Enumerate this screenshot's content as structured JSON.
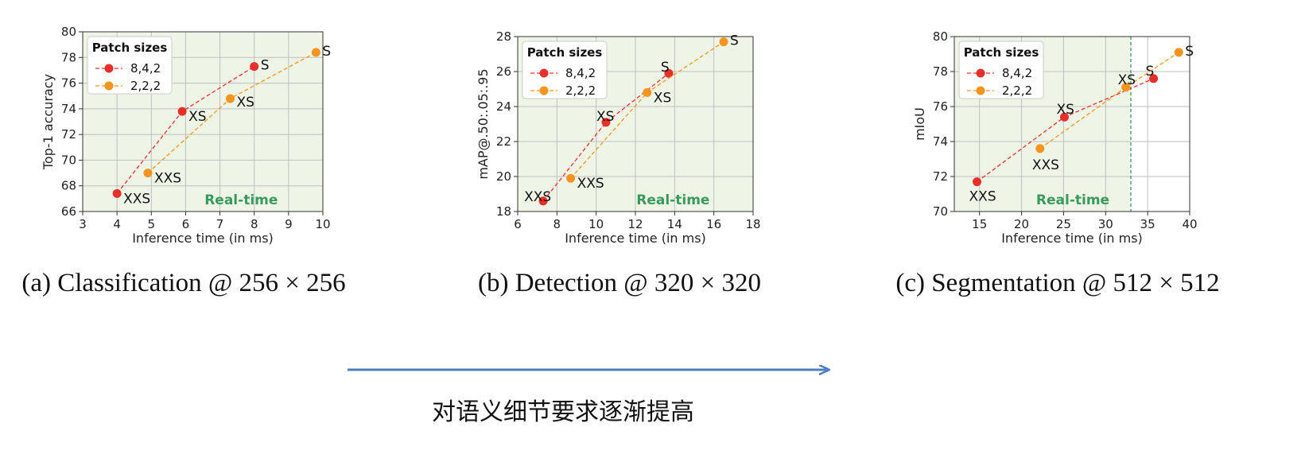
{
  "chart_data": [
    {
      "type": "line",
      "xlabel": "Inference time (in ms)",
      "ylabel": "Top-1 accuracy",
      "xlim": [
        3,
        10
      ],
      "ylim": [
        66,
        80
      ],
      "xticks": [
        "3",
        "4",
        "5",
        "6",
        "7",
        "8",
        "9",
        "10"
      ],
      "yticks": [
        "66",
        "68",
        "70",
        "72",
        "74",
        "76",
        "78",
        "80"
      ],
      "legend_title": "Patch sizes",
      "legend_position": "top-left",
      "grid": true,
      "annotation": "Real-time",
      "caption": "(a) Classification @ 256 × 256",
      "series": [
        {
          "name": "8,4,2",
          "color": "#e8302a",
          "points": [
            {
              "x": 4.0,
              "y": 67.4,
              "label": "XXS"
            },
            {
              "x": 5.9,
              "y": 73.8,
              "label": "XS"
            },
            {
              "x": 8.0,
              "y": 77.3,
              "label": "S"
            }
          ]
        },
        {
          "name": "2,2,2",
          "color": "#f7941d",
          "points": [
            {
              "x": 4.9,
              "y": 69.0,
              "label": "XXS"
            },
            {
              "x": 7.3,
              "y": 74.8,
              "label": "XS"
            },
            {
              "x": 9.8,
              "y": 78.4,
              "label": "S"
            }
          ]
        }
      ]
    },
    {
      "type": "line",
      "xlabel": "Inference time (in ms)",
      "ylabel": "mAP@.50:.05:.95",
      "xlim": [
        6,
        18
      ],
      "ylim": [
        18,
        28
      ],
      "xticks": [
        "6",
        "8",
        "10",
        "12",
        "14",
        "16",
        "18"
      ],
      "yticks": [
        "18",
        "20",
        "22",
        "24",
        "26",
        "28"
      ],
      "legend_title": "Patch sizes",
      "legend_position": "top-left",
      "grid": true,
      "annotation": "Real-time",
      "caption": "(b) Detection @ 320 × 320",
      "series": [
        {
          "name": "8,4,2",
          "color": "#e8302a",
          "points": [
            {
              "x": 7.3,
              "y": 18.6,
              "label": "XXS"
            },
            {
              "x": 10.5,
              "y": 23.1,
              "label": "XS"
            },
            {
              "x": 13.7,
              "y": 25.9,
              "label": "S"
            }
          ]
        },
        {
          "name": "2,2,2",
          "color": "#f7941d",
          "points": [
            {
              "x": 8.7,
              "y": 19.9,
              "label": "XXS"
            },
            {
              "x": 12.6,
              "y": 24.8,
              "label": "XS"
            },
            {
              "x": 16.5,
              "y": 27.7,
              "label": "S"
            }
          ]
        }
      ]
    },
    {
      "type": "line",
      "xlabel": "Inference time (in ms)",
      "ylabel": "mIoU",
      "xlim": [
        12,
        40
      ],
      "ylim": [
        70,
        80
      ],
      "xticks": [
        "15",
        "20",
        "25",
        "30",
        "35",
        "40"
      ],
      "yticks": [
        "70",
        "72",
        "74",
        "76",
        "78",
        "80"
      ],
      "legend_title": "Patch sizes",
      "legend_position": "top-left",
      "grid": true,
      "annotation": "Real-time",
      "realtime_threshold_x": 33,
      "caption": "(c) Segmentation @ 512 × 512",
      "series": [
        {
          "name": "8,4,2",
          "color": "#e8302a",
          "points": [
            {
              "x": 14.7,
              "y": 71.7,
              "label": "XXS"
            },
            {
              "x": 25.1,
              "y": 75.4,
              "label": "XS"
            },
            {
              "x": 35.7,
              "y": 77.6,
              "label": "S"
            }
          ]
        },
        {
          "name": "2,2,2",
          "color": "#f7941d",
          "points": [
            {
              "x": 22.2,
              "y": 73.6,
              "label": "XXS"
            },
            {
              "x": 32.4,
              "y": 77.1,
              "label": "XS"
            },
            {
              "x": 38.7,
              "y": 79.1,
              "label": "S"
            }
          ]
        }
      ]
    }
  ],
  "footer": {
    "arrow_color": "#4f7fc0",
    "text": "对语义细节要求逐渐提高"
  }
}
